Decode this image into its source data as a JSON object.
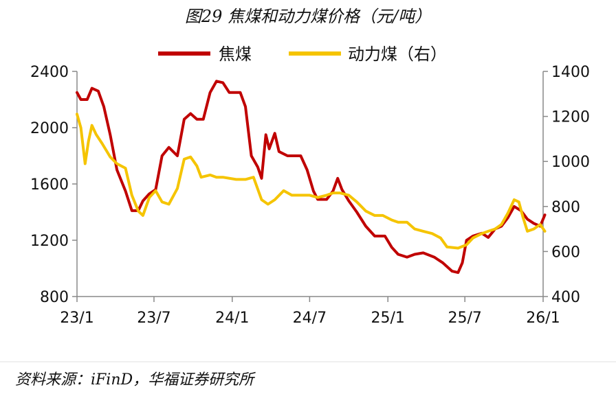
{
  "title": "图29 焦煤和动力煤价格（元/吨）",
  "source": "资料来源：iFinD，华福证券研究所",
  "colors": {
    "coking": "#c00000",
    "thermal": "#f5c400",
    "axis": "#888888",
    "text": "#111111",
    "divider": "#e0e0e0"
  },
  "chart_data": {
    "type": "line",
    "title": "图29 焦煤和动力煤价格（元/吨）",
    "x_tick_labels": [
      "23/1",
      "23/7",
      "24/1",
      "24/7",
      "25/1",
      "25/7",
      "26/1"
    ],
    "x_ticks": [
      "2023-01",
      "2023-07",
      "2024-01",
      "2024-07",
      "2025-01",
      "2025-07",
      "2026-01"
    ],
    "left_axis": {
      "ylim": [
        800,
        2400
      ],
      "ticks": [
        800,
        1200,
        1600,
        2000,
        2400
      ]
    },
    "right_axis": {
      "ylim": [
        400,
        1400
      ],
      "ticks": [
        400,
        600,
        800,
        1000,
        1200,
        1400
      ]
    },
    "legend_placement": "top-center",
    "series": [
      {
        "name": "焦煤",
        "axis": "left",
        "color": "#c00000",
        "points": [
          [
            "2023-01-01",
            2250
          ],
          [
            "2023-01-10",
            2200
          ],
          [
            "2023-01-25",
            2200
          ],
          [
            "2023-02-05",
            2280
          ],
          [
            "2023-02-20",
            2260
          ],
          [
            "2023-03-05",
            2150
          ],
          [
            "2023-03-20",
            1950
          ],
          [
            "2023-04-05",
            1700
          ],
          [
            "2023-04-25",
            1550
          ],
          [
            "2023-05-10",
            1410
          ],
          [
            "2023-05-25",
            1410
          ],
          [
            "2023-06-05",
            1480
          ],
          [
            "2023-06-20",
            1530
          ],
          [
            "2023-07-05",
            1560
          ],
          [
            "2023-07-20",
            1800
          ],
          [
            "2023-08-05",
            1860
          ],
          [
            "2023-08-25",
            1800
          ],
          [
            "2023-09-10",
            2060
          ],
          [
            "2023-09-25",
            2100
          ],
          [
            "2023-10-10",
            2060
          ],
          [
            "2023-10-25",
            2060
          ],
          [
            "2023-11-10",
            2250
          ],
          [
            "2023-11-25",
            2330
          ],
          [
            "2023-12-10",
            2320
          ],
          [
            "2023-12-25",
            2250
          ],
          [
            "2024-01-20",
            2250
          ],
          [
            "2024-02-01",
            2150
          ],
          [
            "2024-02-15",
            1800
          ],
          [
            "2024-03-01",
            1720
          ],
          [
            "2024-03-10",
            1640
          ],
          [
            "2024-03-20",
            1950
          ],
          [
            "2024-03-28",
            1850
          ],
          [
            "2024-04-10",
            1960
          ],
          [
            "2024-04-20",
            1830
          ],
          [
            "2024-05-10",
            1800
          ],
          [
            "2024-06-10",
            1800
          ],
          [
            "2024-06-25",
            1700
          ],
          [
            "2024-07-10",
            1550
          ],
          [
            "2024-07-20",
            1490
          ],
          [
            "2024-08-10",
            1490
          ],
          [
            "2024-08-25",
            1550
          ],
          [
            "2024-09-05",
            1640
          ],
          [
            "2024-09-15",
            1560
          ],
          [
            "2024-10-01",
            1480
          ],
          [
            "2024-10-20",
            1400
          ],
          [
            "2024-11-10",
            1300
          ],
          [
            "2024-12-01",
            1230
          ],
          [
            "2024-12-25",
            1230
          ],
          [
            "2025-01-10",
            1150
          ],
          [
            "2025-01-25",
            1100
          ],
          [
            "2025-02-15",
            1080
          ],
          [
            "2025-03-05",
            1100
          ],
          [
            "2025-03-25",
            1110
          ],
          [
            "2025-04-20",
            1080
          ],
          [
            "2025-05-10",
            1040
          ],
          [
            "2025-06-01",
            980
          ],
          [
            "2025-06-15",
            970
          ],
          [
            "2025-06-25",
            1040
          ],
          [
            "2025-07-05",
            1200
          ],
          [
            "2025-07-20",
            1230
          ],
          [
            "2025-08-10",
            1250
          ],
          [
            "2025-08-25",
            1220
          ],
          [
            "2025-09-10",
            1280
          ],
          [
            "2025-09-25",
            1300
          ],
          [
            "2025-10-10",
            1360
          ],
          [
            "2025-10-25",
            1440
          ],
          [
            "2025-11-10",
            1410
          ],
          [
            "2025-11-25",
            1350
          ],
          [
            "2025-12-10",
            1320
          ],
          [
            "2025-12-25",
            1300
          ],
          [
            "2026-01-05",
            1380
          ]
        ]
      },
      {
        "name": "动力煤（右）",
        "axis": "right",
        "color": "#f5c400",
        "points": [
          [
            "2023-01-01",
            1210
          ],
          [
            "2023-01-10",
            1150
          ],
          [
            "2023-01-20",
            990
          ],
          [
            "2023-01-28",
            1090
          ],
          [
            "2023-02-05",
            1160
          ],
          [
            "2023-02-15",
            1120
          ],
          [
            "2023-03-01",
            1080
          ],
          [
            "2023-03-20",
            1020
          ],
          [
            "2023-04-05",
            990
          ],
          [
            "2023-04-25",
            970
          ],
          [
            "2023-05-10",
            850
          ],
          [
            "2023-05-25",
            780
          ],
          [
            "2023-06-05",
            760
          ],
          [
            "2023-06-20",
            840
          ],
          [
            "2023-07-05",
            870
          ],
          [
            "2023-07-20",
            820
          ],
          [
            "2023-08-05",
            810
          ],
          [
            "2023-08-25",
            880
          ],
          [
            "2023-09-10",
            1010
          ],
          [
            "2023-09-25",
            1020
          ],
          [
            "2023-10-10",
            980
          ],
          [
            "2023-10-20",
            930
          ],
          [
            "2023-11-10",
            940
          ],
          [
            "2023-11-25",
            930
          ],
          [
            "2023-12-10",
            930
          ],
          [
            "2024-01-10",
            920
          ],
          [
            "2024-02-01",
            920
          ],
          [
            "2024-02-20",
            930
          ],
          [
            "2024-03-10",
            830
          ],
          [
            "2024-03-25",
            810
          ],
          [
            "2024-04-10",
            830
          ],
          [
            "2024-05-01",
            870
          ],
          [
            "2024-05-20",
            850
          ],
          [
            "2024-06-10",
            850
          ],
          [
            "2024-07-01",
            850
          ],
          [
            "2024-07-20",
            840
          ],
          [
            "2024-08-10",
            850
          ],
          [
            "2024-08-25",
            860
          ],
          [
            "2024-09-10",
            860
          ],
          [
            "2024-10-01",
            850
          ],
          [
            "2024-10-20",
            820
          ],
          [
            "2024-11-10",
            780
          ],
          [
            "2024-12-01",
            760
          ],
          [
            "2024-12-20",
            760
          ],
          [
            "2025-01-10",
            740
          ],
          [
            "2025-01-25",
            730
          ],
          [
            "2025-02-15",
            730
          ],
          [
            "2025-03-05",
            700
          ],
          [
            "2025-03-25",
            690
          ],
          [
            "2025-04-15",
            680
          ],
          [
            "2025-05-05",
            660
          ],
          [
            "2025-05-20",
            620
          ],
          [
            "2025-06-15",
            615
          ],
          [
            "2025-07-05",
            630
          ],
          [
            "2025-07-20",
            660
          ],
          [
            "2025-08-10",
            680
          ],
          [
            "2025-08-25",
            690
          ],
          [
            "2025-09-10",
            700
          ],
          [
            "2025-09-25",
            720
          ],
          [
            "2025-10-10",
            770
          ],
          [
            "2025-10-25",
            830
          ],
          [
            "2025-11-05",
            820
          ],
          [
            "2025-11-15",
            750
          ],
          [
            "2025-11-25",
            690
          ],
          [
            "2025-12-10",
            700
          ],
          [
            "2025-12-25",
            720
          ],
          [
            "2026-01-05",
            690
          ]
        ]
      }
    ]
  }
}
